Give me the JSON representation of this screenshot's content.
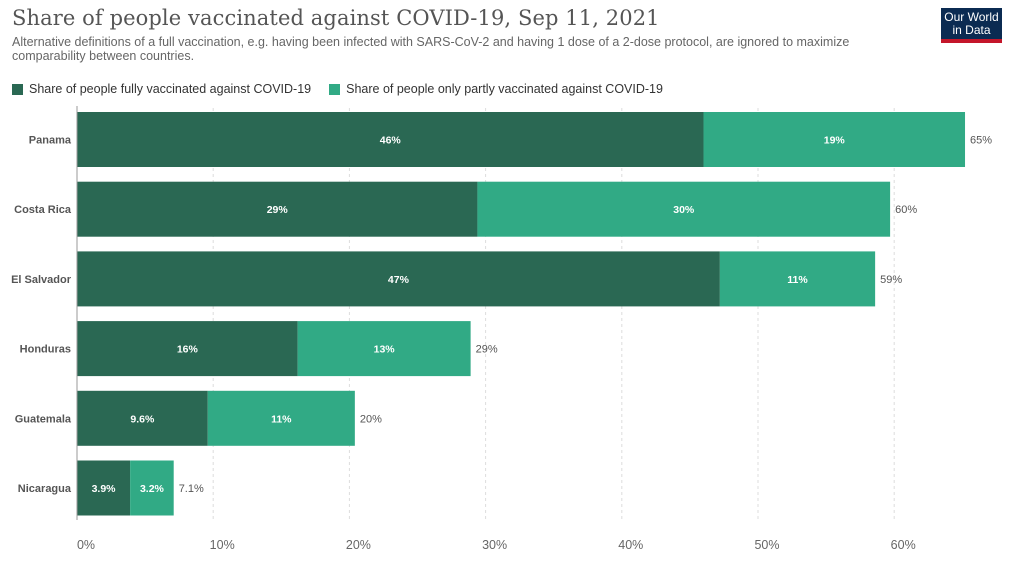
{
  "header": {
    "title": "Share of people vaccinated against COVID-19, Sep 11, 2021",
    "subtitle": "Alternative definitions of a full vaccination, e.g. having been infected with SARS-CoV-2 and having 1 dose of a 2-dose protocol, are ignored to maximize comparability between countries.",
    "logo_line1": "Our World",
    "logo_line2": "in Data"
  },
  "colors": {
    "fully": "#2a6853",
    "partly": "#31aa85",
    "logo_bg": "#0b2b52",
    "logo_accent": "#c4162a"
  },
  "chart_data": {
    "type": "bar",
    "orientation": "horizontal",
    "stacked": true,
    "categories": [
      "Panama",
      "Costa Rica",
      "El Salvador",
      "Honduras",
      "Guatemala",
      "Nicaragua"
    ],
    "series": [
      {
        "name": "Share of people fully vaccinated against COVID-19",
        "values": [
          46,
          29.4,
          47.2,
          16.2,
          9.6,
          3.9
        ],
        "labels": [
          "46%",
          "29%",
          "47%",
          "16%",
          "9.6%",
          "3.9%"
        ]
      },
      {
        "name": "Share of people only partly vaccinated against COVID-19",
        "values": [
          19.2,
          30.3,
          11.4,
          12.7,
          10.8,
          3.2
        ],
        "labels": [
          "19%",
          "30%",
          "11%",
          "13%",
          "11%",
          "3.2%"
        ]
      }
    ],
    "totals": [
      "65%",
      "60%",
      "59%",
      "29%",
      "20%",
      "7.1%"
    ],
    "xticks": [
      0,
      10,
      20,
      30,
      40,
      50,
      60
    ],
    "xtick_labels": [
      "0%",
      "10%",
      "20%",
      "30%",
      "40%",
      "50%",
      "60%"
    ],
    "xlim": [
      0,
      67
    ],
    "grid": "vertical dashed",
    "legend_position": "top-left"
  }
}
